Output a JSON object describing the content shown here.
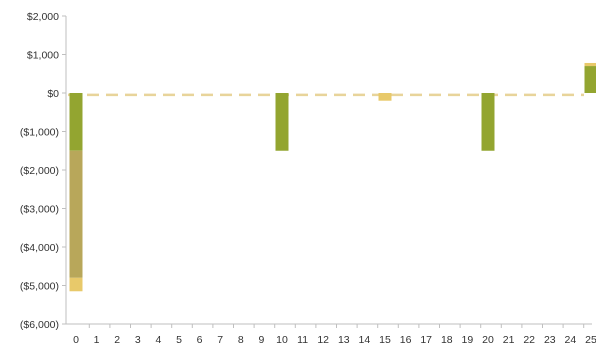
{
  "chart_data": {
    "type": "bar",
    "stacked": true,
    "title": "",
    "xlabel": "",
    "ylabel": "",
    "categories": [
      "0",
      "1",
      "2",
      "3",
      "4",
      "5",
      "6",
      "7",
      "8",
      "9",
      "10",
      "11",
      "12",
      "13",
      "14",
      "15",
      "16",
      "17",
      "18",
      "19",
      "20",
      "21",
      "22",
      "23",
      "24",
      "25"
    ],
    "yticks": [
      "$2,000",
      "$1,000",
      "$0",
      "($1,000)",
      "($2,000)",
      "($3,000)",
      "($4,000)",
      "($5,000)",
      "($6,000)"
    ],
    "ylim": [
      -6000,
      2000
    ],
    "grid": false,
    "legend": "none",
    "reference_line": {
      "value": -50,
      "style": "dashed",
      "color": "#e8d49a"
    },
    "series": [
      {
        "color": "#93a530",
        "values": [
          -1500,
          0,
          0,
          0,
          0,
          0,
          0,
          0,
          0,
          0,
          -1500,
          0,
          0,
          0,
          0,
          0,
          0,
          0,
          0,
          0,
          -1500,
          0,
          0,
          0,
          0,
          700
        ]
      },
      {
        "color": "#b8a75a",
        "values": [
          -3300,
          0,
          0,
          0,
          0,
          0,
          0,
          0,
          0,
          0,
          0,
          0,
          0,
          0,
          0,
          0,
          0,
          0,
          0,
          0,
          0,
          0,
          0,
          0,
          0,
          0
        ]
      },
      {
        "color": "#e8c96a",
        "values": [
          -350,
          0,
          0,
          0,
          0,
          0,
          0,
          0,
          0,
          0,
          0,
          0,
          0,
          0,
          0,
          -200,
          0,
          0,
          0,
          0,
          0,
          0,
          0,
          0,
          0,
          80
        ]
      }
    ]
  }
}
